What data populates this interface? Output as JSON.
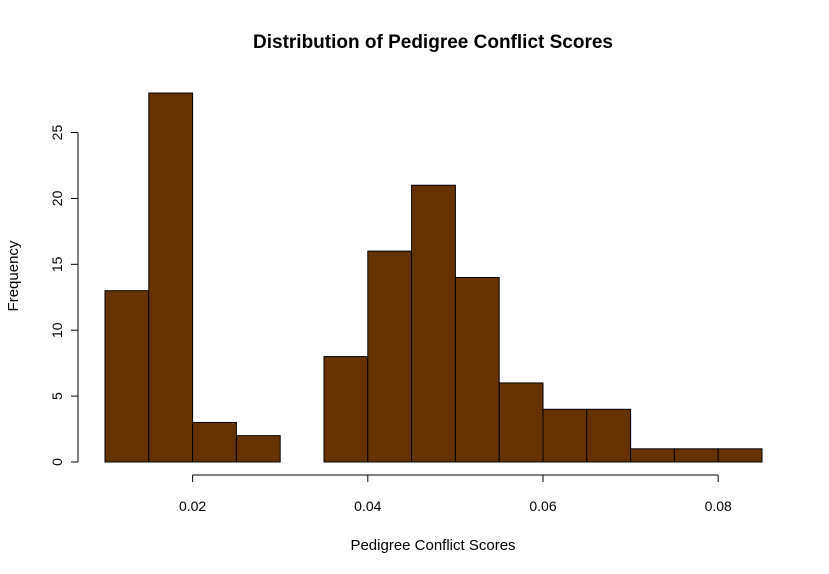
{
  "chart_data": {
    "type": "bar",
    "title": "Distribution of Pedigree Conflict Scores",
    "xlabel": "Pedigree  Conflict Scores",
    "ylabel": "Frequency",
    "bin_edges": [
      0.01,
      0.015,
      0.02,
      0.025,
      0.03,
      0.035,
      0.04,
      0.045,
      0.05,
      0.055,
      0.06,
      0.065,
      0.07,
      0.075,
      0.08,
      0.085
    ],
    "values": [
      13,
      28,
      3,
      2,
      0,
      8,
      16,
      21,
      14,
      6,
      4,
      4,
      1,
      1,
      1
    ],
    "xlim": [
      0.01,
      0.085
    ],
    "ylim": [
      0,
      28
    ],
    "x_ticks": [
      0.02,
      0.04,
      0.06,
      0.08
    ],
    "x_tick_labels": [
      "0.02",
      "0.04",
      "0.06",
      "0.08"
    ],
    "y_ticks": [
      0,
      5,
      10,
      15,
      20,
      25
    ],
    "y_tick_labels": [
      "0",
      "5",
      "10",
      "15",
      "20",
      "25"
    ],
    "bar_color": "#663300",
    "grid": false,
    "legend": "none"
  }
}
